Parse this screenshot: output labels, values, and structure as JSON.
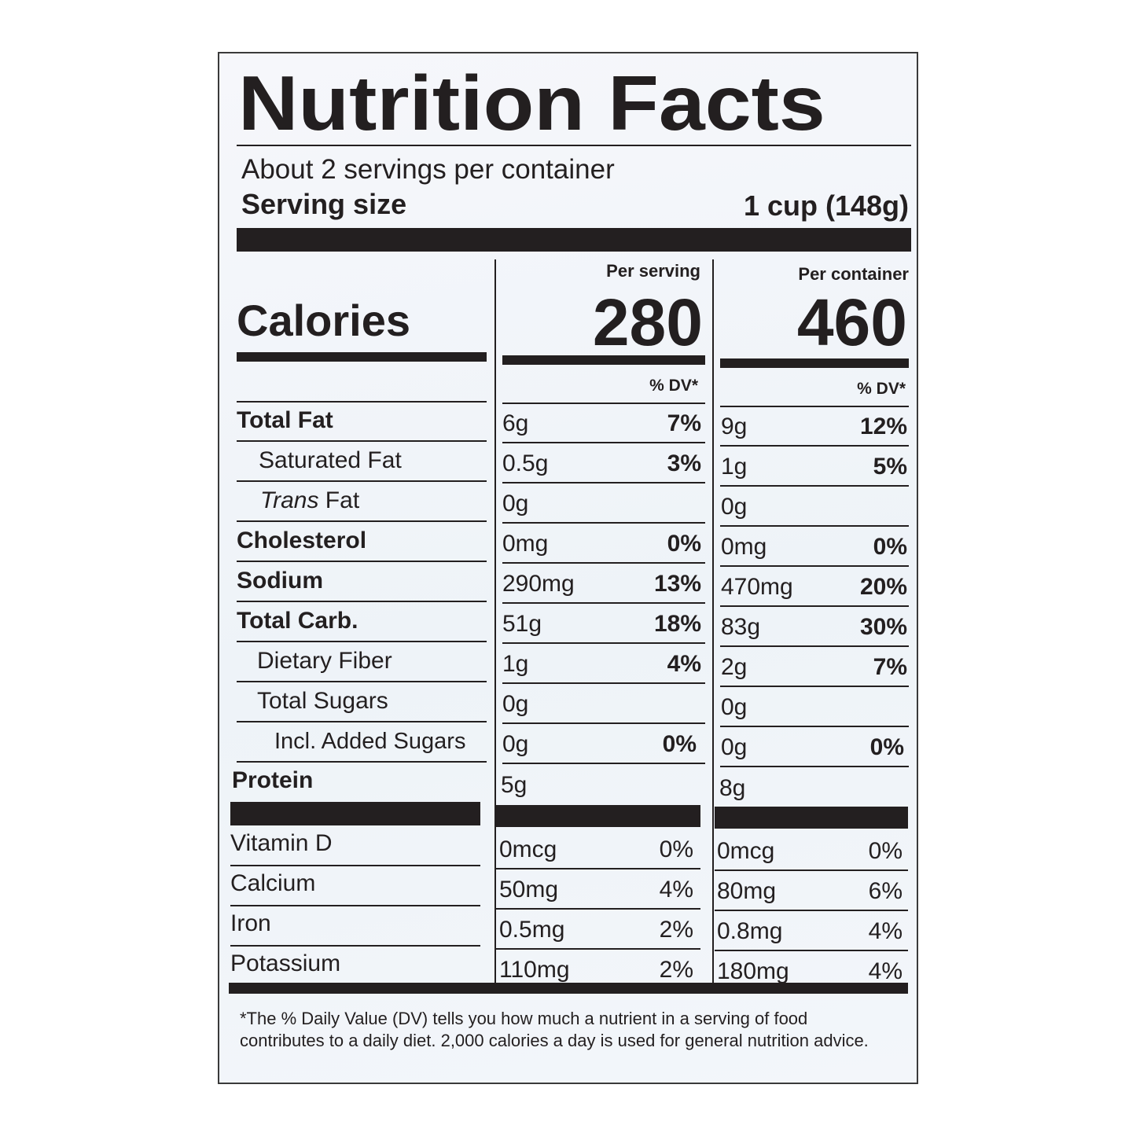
{
  "title": "Nutrition Facts",
  "servings_per_container": "About 2 servings per container",
  "serving_size": {
    "label": "Serving size",
    "value": "1 cup (148g)"
  },
  "columns": {
    "per_serving": "Per serving",
    "per_container": "Per container"
  },
  "calories": {
    "label": "Calories",
    "per_serving": "280",
    "per_container": "460"
  },
  "dv_header": "% DV*",
  "nutrients": [
    {
      "name": "Total Fat",
      "serving_amount": "6g",
      "serving_dv": "7%",
      "container_amount": "9g",
      "container_dv": "12%"
    },
    {
      "name": "Saturated Fat",
      "serving_amount": "0.5g",
      "serving_dv": "3%",
      "container_amount": "1g",
      "container_dv": "5%"
    },
    {
      "name_italic": "Trans",
      "name": " Fat",
      "serving_amount": "0g",
      "serving_dv": "",
      "container_amount": "0g",
      "container_dv": ""
    },
    {
      "name": "Cholesterol",
      "serving_amount": "0mg",
      "serving_dv": "0%",
      "container_amount": "0mg",
      "container_dv": "0%"
    },
    {
      "name": "Sodium",
      "serving_amount": "290mg",
      "serving_dv": "13%",
      "container_amount": "470mg",
      "container_dv": "20%"
    },
    {
      "name": "Total Carb.",
      "serving_amount": "51g",
      "serving_dv": "18%",
      "container_amount": "83g",
      "container_dv": "30%"
    },
    {
      "name": "Dietary Fiber",
      "serving_amount": "1g",
      "serving_dv": "4%",
      "container_amount": "2g",
      "container_dv": "7%"
    },
    {
      "name": "Total Sugars",
      "serving_amount": "0g",
      "serving_dv": "",
      "container_amount": "0g",
      "container_dv": ""
    },
    {
      "name": "Incl. Added Sugars",
      "serving_amount": "0g",
      "serving_dv": "0%",
      "container_amount": "0g",
      "container_dv": "0%"
    },
    {
      "name": "Protein",
      "serving_amount": "5g",
      "serving_dv": "",
      "container_amount": "8g",
      "container_dv": ""
    }
  ],
  "vitamins": [
    {
      "name": "Vitamin D",
      "serving_amount": "0mcg",
      "serving_dv": "0%",
      "container_amount": "0mcg",
      "container_dv": "0%"
    },
    {
      "name": "Calcium",
      "serving_amount": "50mg",
      "serving_dv": "4%",
      "container_amount": "80mg",
      "container_dv": "6%"
    },
    {
      "name": "Iron",
      "serving_amount": "0.5mg",
      "serving_dv": "2%",
      "container_amount": "0.8mg",
      "container_dv": "4%"
    },
    {
      "name": "Potassium",
      "serving_amount": "110mg",
      "serving_dv": "2%",
      "container_amount": "180mg",
      "container_dv": "4%"
    }
  ],
  "footnote": "*The % Daily Value (DV) tells you how much a nutrient in a serving of food contributes to a daily diet. 2,000 calories a day is used for general nutrition advice."
}
